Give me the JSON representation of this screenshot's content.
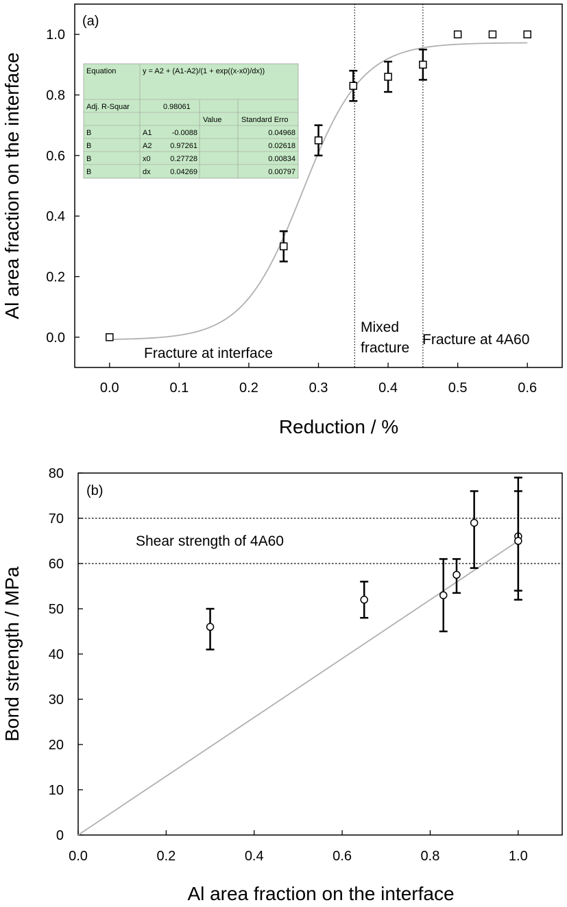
{
  "chart_data": [
    {
      "type": "scatter",
      "panel_label": "(a)",
      "xlabel": "Reduction / %",
      "ylabel": "Al area fraction on the interface",
      "xlim": [
        -0.05,
        0.65
      ],
      "ylim": [
        -0.1,
        1.1
      ],
      "xticks": [
        "0.0",
        "0.1",
        "0.2",
        "0.3",
        "0.4",
        "0.5",
        "0.6"
      ],
      "yticks": [
        "0.0",
        "0.2",
        "0.4",
        "0.6",
        "0.8",
        "1.0"
      ],
      "points": [
        {
          "x": 0.0,
          "y": 0.0
        },
        {
          "x": 0.25,
          "y": 0.3,
          "err": 0.05
        },
        {
          "x": 0.3,
          "y": 0.65,
          "err": 0.05
        },
        {
          "x": 0.35,
          "y": 0.83,
          "err": 0.05
        },
        {
          "x": 0.4,
          "y": 0.86,
          "err": 0.05
        },
        {
          "x": 0.45,
          "y": 0.9,
          "err": 0.05
        },
        {
          "x": 0.5,
          "y": 1.0
        },
        {
          "x": 0.55,
          "y": 1.0
        },
        {
          "x": 0.6,
          "y": 1.0
        }
      ],
      "fit": {
        "A1": -0.0088,
        "A2": 0.97261,
        "x0": 0.27728,
        "dx": 0.04269
      },
      "vlines": [
        0.352,
        0.45
      ],
      "annotations": {
        "left": "Fracture at interface",
        "mid_line1": "Mixed",
        "mid_line2": "fracture",
        "right": "Fracture at 4A60"
      },
      "table": {
        "equation_label": "Equation",
        "equation": "y = A2 + (A1-A2)/(1 + exp((x-x0)/dx))",
        "adjr_label": "Adj. R-Squar",
        "adjr_value": "0.98061",
        "col_value": "Value",
        "col_error": "Standard Erro",
        "rows": [
          {
            "a": "B",
            "b": "A1",
            "c": "-0.0088",
            "d": "0.04968"
          },
          {
            "a": "B",
            "b": "A2",
            "c": "0.97261",
            "d": "0.02618"
          },
          {
            "a": "B",
            "b": "x0",
            "c": "0.27728",
            "d": "0.00834"
          },
          {
            "a": "B",
            "b": "dx",
            "c": "0.04269",
            "d": "0.00797"
          }
        ]
      }
    },
    {
      "type": "scatter",
      "panel_label": "(b)",
      "xlabel": "Al area fraction on the interface",
      "ylabel": "Bond strength / MPa",
      "xlim": [
        0.0,
        1.1
      ],
      "ylim": [
        0,
        80
      ],
      "xticks": [
        "0.0",
        "0.2",
        "0.4",
        "0.6",
        "0.8",
        "1.0"
      ],
      "yticks": [
        "0",
        "10",
        "20",
        "30",
        "40",
        "50",
        "60",
        "70",
        "80"
      ],
      "points": [
        {
          "x": 0.3,
          "y": 46,
          "lo": 41,
          "hi": 50
        },
        {
          "x": 0.65,
          "y": 52,
          "lo": 48,
          "hi": 56
        },
        {
          "x": 0.83,
          "y": 53,
          "lo": 45,
          "hi": 61
        },
        {
          "x": 0.86,
          "y": 57.5,
          "lo": 53.5,
          "hi": 61
        },
        {
          "x": 0.9,
          "y": 69,
          "lo": 59,
          "hi": 76
        },
        {
          "x": 1.0,
          "y": 66,
          "lo": 54,
          "hi": 79
        },
        {
          "x": 1.0,
          "y": 65,
          "lo": 52,
          "hi": 76
        }
      ],
      "line": {
        "x": [
          0.0,
          1.0
        ],
        "y": [
          0,
          65
        ]
      },
      "hlines": [
        70,
        60
      ],
      "annotation": "Shear strength of 4A60"
    }
  ]
}
